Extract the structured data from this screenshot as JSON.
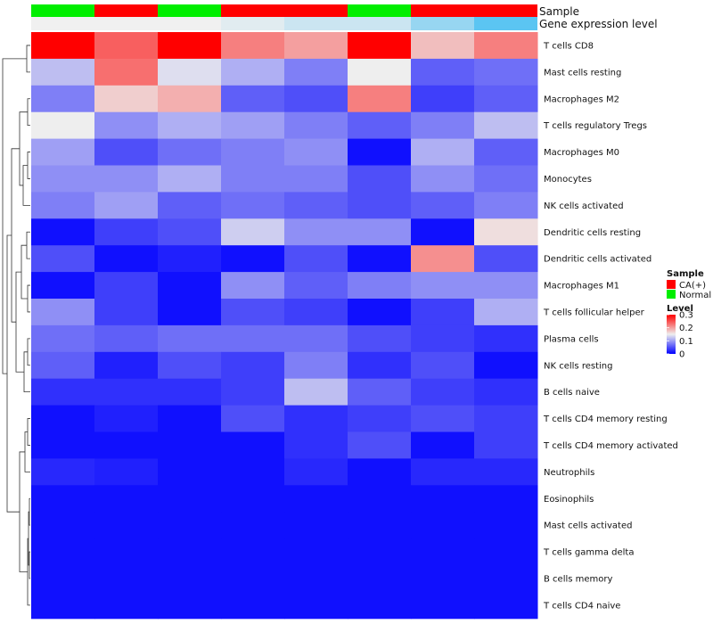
{
  "chart_data": {
    "type": "heatmap",
    "annotation_rows": {
      "sample": "Sample",
      "gene_expression_level": "Gene expression level"
    },
    "columns": [
      {
        "sample": "Normal",
        "gene_level": 0.0
      },
      {
        "sample": "CA(+)",
        "gene_level": 0.0
      },
      {
        "sample": "Normal",
        "gene_level": 0.0
      },
      {
        "sample": "CA(+)",
        "gene_level": 0.1
      },
      {
        "sample": "CA(+)",
        "gene_level": 0.25
      },
      {
        "sample": "Normal",
        "gene_level": 0.25
      },
      {
        "sample": "CA(+)",
        "gene_level": 0.6
      },
      {
        "sample": "CA(+)",
        "gene_level": 1.0
      }
    ],
    "sample_colors": {
      "CA(+)": "#ff0000",
      "Normal": "#00ee00"
    },
    "gene_level_colors": {
      "low": "#f0f0f0",
      "high": "#5bc5f2"
    },
    "rows": [
      {
        "name": "T cells CD8",
        "values": [
          0.3,
          0.24,
          0.3,
          0.22,
          0.2,
          0.3,
          0.18,
          0.22
        ]
      },
      {
        "name": "Mast cells resting",
        "values": [
          0.12,
          0.23,
          0.14,
          0.11,
          0.08,
          0.15,
          0.06,
          0.07
        ]
      },
      {
        "name": "Macrophages M2",
        "values": [
          0.08,
          0.17,
          0.19,
          0.06,
          0.05,
          0.22,
          0.04,
          0.06
        ]
      },
      {
        "name": "T cells regulatory  Tregs",
        "values": [
          0.15,
          0.09,
          0.11,
          0.1,
          0.08,
          0.06,
          0.08,
          0.12
        ]
      },
      {
        "name": "Macrophages M0",
        "values": [
          0.1,
          0.05,
          0.07,
          0.08,
          0.09,
          0.01,
          0.11,
          0.06
        ]
      },
      {
        "name": "Monocytes",
        "values": [
          0.09,
          0.09,
          0.11,
          0.08,
          0.08,
          0.05,
          0.09,
          0.07
        ]
      },
      {
        "name": "NK cells activated",
        "values": [
          0.08,
          0.1,
          0.06,
          0.07,
          0.06,
          0.05,
          0.06,
          0.08
        ]
      },
      {
        "name": "Dendritic cells resting",
        "values": [
          0.01,
          0.04,
          0.05,
          0.13,
          0.09,
          0.09,
          0.01,
          0.16
        ]
      },
      {
        "name": "Dendritic cells activated",
        "values": [
          0.05,
          0.01,
          0.02,
          0.01,
          0.05,
          0.01,
          0.21,
          0.05
        ]
      },
      {
        "name": "Macrophages M1",
        "values": [
          0.01,
          0.04,
          0.01,
          0.09,
          0.06,
          0.08,
          0.09,
          0.09
        ]
      },
      {
        "name": "T cells follicular helper",
        "values": [
          0.09,
          0.04,
          0.01,
          0.05,
          0.04,
          0.01,
          0.04,
          0.11
        ]
      },
      {
        "name": "Plasma cells",
        "values": [
          0.07,
          0.06,
          0.07,
          0.07,
          0.07,
          0.05,
          0.04,
          0.03
        ]
      },
      {
        "name": "NK cells resting",
        "values": [
          0.06,
          0.02,
          0.05,
          0.04,
          0.08,
          0.03,
          0.05,
          0.01
        ]
      },
      {
        "name": "B cells naive",
        "values": [
          0.03,
          0.03,
          0.03,
          0.04,
          0.12,
          0.06,
          0.04,
          0.03
        ]
      },
      {
        "name": "T cells CD4 memory resting",
        "values": [
          0.01,
          0.02,
          0.01,
          0.05,
          0.03,
          0.04,
          0.05,
          0.04
        ]
      },
      {
        "name": "T cells CD4 memory activated",
        "values": [
          0.01,
          0.01,
          0.01,
          0.01,
          0.03,
          0.05,
          0.01,
          0.04
        ]
      },
      {
        "name": "Neutrophils",
        "values": [
          0.025,
          0.02,
          0.01,
          0.01,
          0.025,
          0.01,
          0.025,
          0.025
        ]
      },
      {
        "name": "Eosinophils",
        "values": [
          0.01,
          0.01,
          0.01,
          0.01,
          0.01,
          0.01,
          0.01,
          0.01
        ]
      },
      {
        "name": "Mast cells activated",
        "values": [
          0.01,
          0.01,
          0.01,
          0.01,
          0.01,
          0.01,
          0.01,
          0.01
        ]
      },
      {
        "name": "T cells gamma delta",
        "values": [
          0.01,
          0.01,
          0.01,
          0.01,
          0.01,
          0.01,
          0.01,
          0.01
        ]
      },
      {
        "name": "B cells memory",
        "values": [
          0.01,
          0.01,
          0.01,
          0.01,
          0.01,
          0.01,
          0.01,
          0.01
        ]
      },
      {
        "name": "T cells CD4 naive",
        "values": [
          0.01,
          0.01,
          0.01,
          0.01,
          0.01,
          0.01,
          0.01,
          0.01
        ]
      }
    ],
    "color_scale": {
      "min": 0,
      "mid": 0.15,
      "max": 0.3,
      "low": "#0000ff",
      "mid_color": "#eeeeee",
      "high": "#ff0000"
    },
    "legend": {
      "sample_title": "Sample",
      "sample_items": [
        "CA(+)",
        "Normal"
      ],
      "level_title": "Level",
      "level_ticks": [
        "0.3",
        "0.2",
        "0.1",
        "0"
      ],
      "level_tick_values": [
        0.3,
        0.2,
        0.1,
        0
      ]
    },
    "dendrogram": "row clustering tree on left"
  }
}
